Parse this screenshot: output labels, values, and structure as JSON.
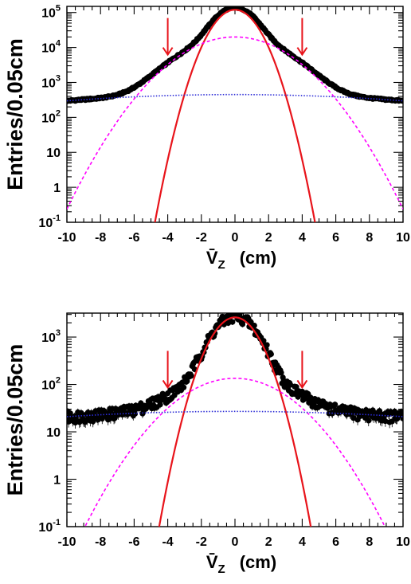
{
  "chart_data": [
    {
      "type": "scatter",
      "xlabel": "V̄",
      "xlabel_sub": "Z",
      "xlabel_unit": "(cm)",
      "ylabel": "Entries/0.05cm",
      "y_scale": "log",
      "xlim": [
        -10,
        10
      ],
      "ylim": [
        0.1,
        150000
      ],
      "x_ticks": [
        -10,
        -8,
        -6,
        -4,
        -2,
        0,
        2,
        4,
        6,
        8,
        10
      ],
      "y_ticks": [
        {
          "value": 0.1,
          "base": "10",
          "exp": "-1"
        },
        {
          "value": 1,
          "base": "1",
          "exp": ""
        },
        {
          "value": 10,
          "base": "10",
          "exp": ""
        },
        {
          "value": 100,
          "base": "10",
          "exp": "2"
        },
        {
          "value": 1000,
          "base": "10",
          "exp": "3"
        },
        {
          "value": 10000,
          "base": "10",
          "exp": "4"
        },
        {
          "value": 100000,
          "base": "10",
          "exp": "5"
        }
      ],
      "arrows_at_x": [
        -4,
        4
      ],
      "arrow_color": "#e8141b",
      "data_series": {
        "marker": "filled-circle",
        "color": "#000000",
        "error_scale": 0.06
      },
      "fit_components": [
        {
          "shape": "gaussian",
          "amplitude": 120000,
          "mean": 0,
          "sigma": 0.9,
          "color": "#e8141b",
          "style": "solid"
        },
        {
          "shape": "gaussian",
          "amplitude": 20000,
          "mean": 0,
          "sigma": 2.1,
          "color": "#ff00ff",
          "style": "dashed"
        },
        {
          "shape": "gaussian",
          "amplitude": 450,
          "mean": 0,
          "sigma": 11.0,
          "color": "#2b2bd6",
          "style": "dotted"
        }
      ]
    },
    {
      "type": "scatter",
      "xlabel": "V̄",
      "xlabel_sub": "Z",
      "xlabel_unit": "(cm)",
      "ylabel": "Entries/0.05cm",
      "y_scale": "log",
      "xlim": [
        -10,
        10
      ],
      "ylim": [
        0.1,
        3200
      ],
      "x_ticks": [
        -10,
        -8,
        -6,
        -4,
        -2,
        0,
        2,
        4,
        6,
        8,
        10
      ],
      "y_ticks": [
        {
          "value": 0.1,
          "base": "10",
          "exp": "-1"
        },
        {
          "value": 1,
          "base": "1",
          "exp": ""
        },
        {
          "value": 10,
          "base": "10",
          "exp": ""
        },
        {
          "value": 100,
          "base": "10",
          "exp": "2"
        },
        {
          "value": 1000,
          "base": "10",
          "exp": "3"
        }
      ],
      "arrows_at_x": [
        -4,
        4
      ],
      "arrow_color": "#e8141b",
      "data_series": {
        "marker": "filled-circle",
        "color": "#000000",
        "error_scale": 0.35
      },
      "fit_components": [
        {
          "shape": "gaussian",
          "amplitude": 2600,
          "mean": 0,
          "sigma": 1.0,
          "color": "#e8141b",
          "style": "solid"
        },
        {
          "shape": "gaussian",
          "amplitude": 135,
          "mean": 0,
          "sigma": 2.35,
          "color": "#ff00ff",
          "style": "dashed"
        },
        {
          "shape": "gaussian",
          "amplitude": 27,
          "mean": 0,
          "sigma": 14.0,
          "color": "#2b2bd6",
          "style": "dotted"
        }
      ]
    }
  ]
}
